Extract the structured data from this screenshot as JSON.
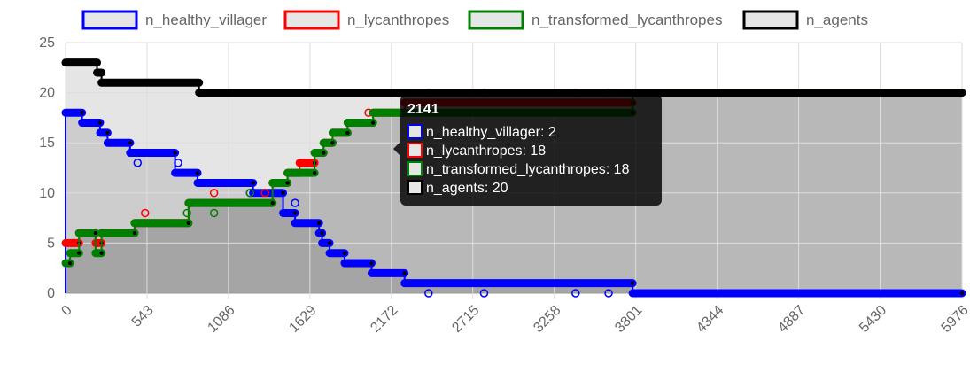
{
  "chart_data": {
    "type": "line",
    "x_ticks": [
      "0",
      "543",
      "1086",
      "1629",
      "2172",
      "2715",
      "3258",
      "3801",
      "4344",
      "4887",
      "5430",
      "5976"
    ],
    "y_ticks": [
      "0",
      "5",
      "10",
      "15",
      "20",
      "25"
    ],
    "xlim": [
      0,
      5976
    ],
    "ylim": [
      0,
      25
    ],
    "grid": true,
    "legend_position": "top",
    "series": [
      {
        "name": "n_healthy_villager",
        "color": "#0000ff",
        "fill": "#e6e6e6",
        "points": [
          [
            0,
            0
          ],
          [
            0,
            18
          ],
          [
            110,
            18
          ],
          [
            110,
            17
          ],
          [
            230,
            17
          ],
          [
            230,
            16
          ],
          [
            280,
            16
          ],
          [
            280,
            15
          ],
          [
            430,
            15
          ],
          [
            430,
            14
          ],
          [
            730,
            14
          ],
          [
            730,
            12
          ],
          [
            880,
            12
          ],
          [
            880,
            11
          ],
          [
            1250,
            11
          ],
          [
            1250,
            10
          ],
          [
            1450,
            10
          ],
          [
            1450,
            8
          ],
          [
            1530,
            8
          ],
          [
            1530,
            7
          ],
          [
            1690,
            7
          ],
          [
            1690,
            6
          ],
          [
            1710,
            6
          ],
          [
            1710,
            5
          ],
          [
            1760,
            5
          ],
          [
            1760,
            4
          ],
          [
            1860,
            4
          ],
          [
            1860,
            3
          ],
          [
            2040,
            3
          ],
          [
            2040,
            2
          ],
          [
            2260,
            2
          ],
          [
            2260,
            1
          ],
          [
            3780,
            1
          ],
          [
            3780,
            0
          ],
          [
            5976,
            0
          ]
        ],
        "outliers": [
          [
            480,
            13
          ],
          [
            750,
            13
          ],
          [
            1230,
            10
          ],
          [
            1530,
            9
          ],
          [
            2420,
            0
          ],
          [
            2790,
            0
          ],
          [
            3400,
            0
          ],
          [
            3620,
            0
          ]
        ]
      },
      {
        "name": "n_lycanthropes",
        "color": "#ff0000",
        "fill": "#e6e6e6",
        "points": [
          [
            0,
            5
          ],
          [
            90,
            5
          ],
          [
            90,
            6
          ],
          [
            200,
            6
          ],
          [
            200,
            5
          ],
          [
            240,
            5
          ],
          [
            240,
            6
          ],
          [
            460,
            6
          ],
          [
            460,
            7
          ],
          [
            820,
            7
          ],
          [
            820,
            9
          ],
          [
            1380,
            9
          ],
          [
            1380,
            11
          ],
          [
            1480,
            11
          ],
          [
            1480,
            12
          ],
          [
            1560,
            12
          ],
          [
            1560,
            13
          ],
          [
            1660,
            13
          ],
          [
            1660,
            14
          ],
          [
            1720,
            14
          ],
          [
            1720,
            15
          ],
          [
            1780,
            15
          ],
          [
            1780,
            16
          ],
          [
            1880,
            16
          ],
          [
            1880,
            17
          ],
          [
            2050,
            17
          ],
          [
            2050,
            18
          ],
          [
            2260,
            18
          ],
          [
            2260,
            19
          ],
          [
            3780,
            19
          ],
          [
            3780,
            20
          ],
          [
            5976,
            20
          ]
        ],
        "outliers": [
          [
            530,
            8
          ],
          [
            990,
            10
          ],
          [
            1330,
            10
          ],
          [
            2020,
            18
          ],
          [
            2420,
            20
          ],
          [
            2790,
            20
          ],
          [
            3400,
            20
          ],
          [
            3620,
            20
          ]
        ]
      },
      {
        "name": "n_transformed_lycanthropes",
        "color": "#008000",
        "fill": "#e6e6e6",
        "points": [
          [
            0,
            3
          ],
          [
            30,
            3
          ],
          [
            30,
            4
          ],
          [
            90,
            4
          ],
          [
            90,
            6
          ],
          [
            200,
            6
          ],
          [
            200,
            4
          ],
          [
            240,
            4
          ],
          [
            240,
            6
          ],
          [
            460,
            6
          ],
          [
            460,
            7
          ],
          [
            820,
            7
          ],
          [
            820,
            9
          ],
          [
            1380,
            9
          ],
          [
            1380,
            11
          ],
          [
            1480,
            11
          ],
          [
            1480,
            12
          ],
          [
            1660,
            12
          ],
          [
            1660,
            14
          ],
          [
            1720,
            14
          ],
          [
            1720,
            15
          ],
          [
            1780,
            15
          ],
          [
            1780,
            16
          ],
          [
            1880,
            16
          ],
          [
            1880,
            17
          ],
          [
            2050,
            17
          ],
          [
            2050,
            18
          ],
          [
            3780,
            18
          ],
          [
            3780,
            20
          ],
          [
            5976,
            20
          ]
        ],
        "outliers": [
          [
            810,
            8
          ],
          [
            990,
            8
          ],
          [
            1230,
            10
          ]
        ]
      },
      {
        "name": "n_agents",
        "color": "#000000",
        "fill": "#e6e6e6",
        "points": [
          [
            0,
            23
          ],
          [
            210,
            23
          ],
          [
            210,
            22
          ],
          [
            240,
            22
          ],
          [
            240,
            21
          ],
          [
            890,
            21
          ],
          [
            890,
            20
          ],
          [
            5976,
            20
          ]
        ],
        "outliers": []
      }
    ],
    "tooltip": {
      "title": "2141",
      "lines": [
        {
          "text": "n_healthy_villager: 2",
          "color": "#0000ff"
        },
        {
          "text": "n_lycanthropes: 18",
          "color": "#ff0000"
        },
        {
          "text": "n_transformed_lycanthropes: 18",
          "color": "#008000"
        },
        {
          "text": "n_agents: 20",
          "color": "#000000"
        }
      ]
    }
  }
}
